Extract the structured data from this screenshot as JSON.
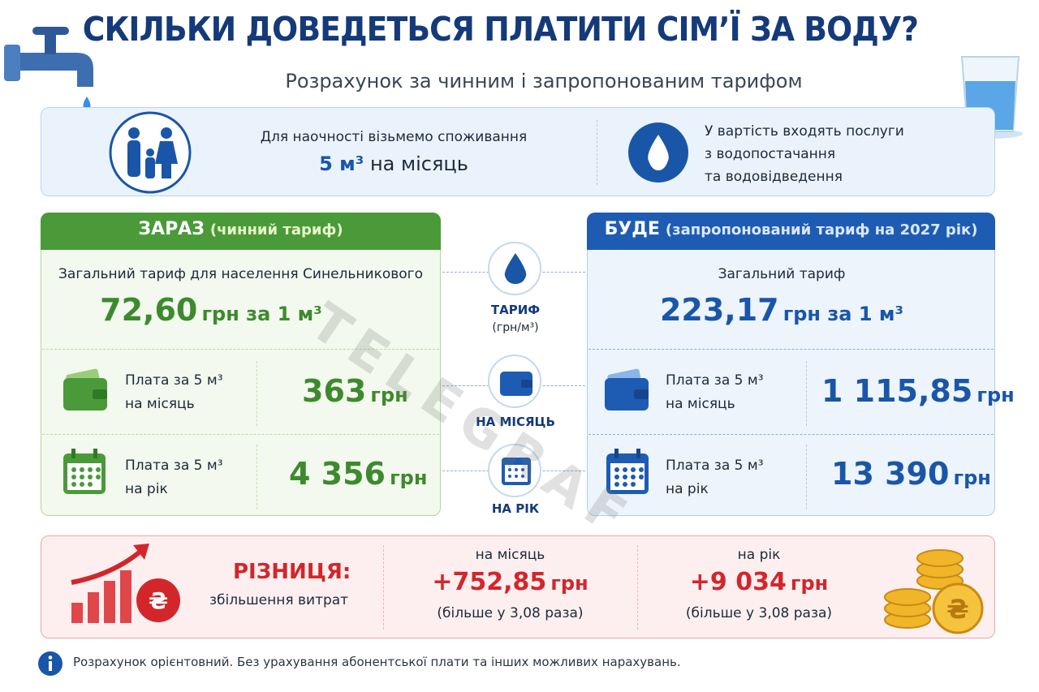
{
  "header": {
    "title": "СКІЛЬКИ ДОВЕДЕТЬСЯ ПЛАТИТИ СІМ’Ї ЗА ВОДУ?",
    "subtitle": "Розрахунок за чинним і запропонованим тарифом"
  },
  "info": {
    "consumption_lead": "Для наочності візьмемо споживання",
    "consumption_value": "5 м³",
    "consumption_unit": "на місяць",
    "services": [
      "У вартість входять послуги",
      "з водопостачання",
      "та водовідведення"
    ]
  },
  "now": {
    "title": "ЗАРАЗ",
    "title_note": "(чинний тариф)",
    "tariff_label": "Загальний тариф для населення Синельникового",
    "tariff_value": "72,60",
    "tariff_unit": "грн за 1 м³",
    "month_label": [
      "Плата за 5 м³",
      "на місяць"
    ],
    "month_value": "363",
    "month_unit": "грн",
    "year_label": [
      "Плата за 5 м³",
      "на рік"
    ],
    "year_value": "4 356",
    "year_unit": "грн"
  },
  "future": {
    "title": "БУДЕ",
    "title_note": "(запропонований тариф на 2027 рік)",
    "tariff_label": "Загальний тариф",
    "tariff_value": "223,17",
    "tariff_unit": "грн за 1 м³",
    "month_label": [
      "Плата за 5 м³",
      "на місяць"
    ],
    "month_value": "1 115,85",
    "month_unit": "грн",
    "year_label": [
      "Плата за 5 м³",
      "на рік"
    ],
    "year_value": "13 390",
    "year_unit": "грн"
  },
  "middle": {
    "tariff": "ТАРИФ",
    "tariff_unit": "(грн/м³)",
    "month": "НА МІСЯЦЬ",
    "year": "НА РІК"
  },
  "difference": {
    "title": "РІЗНИЦЯ:",
    "subtitle": "збільшення витрат",
    "month_label": "на місяць",
    "month_value": "+752,85",
    "month_unit": "грн",
    "month_note": "(більше у 3,08 раза)",
    "year_label": "на рік",
    "year_value": "+9 034",
    "year_unit": "грн",
    "year_note": "(більше у 3,08 раза)"
  },
  "footer": {
    "note": "Розрахунок орієнтовний. Без урахування абонентської плати та інших можливих нарахувань."
  },
  "watermark": "TELEGRAF"
}
